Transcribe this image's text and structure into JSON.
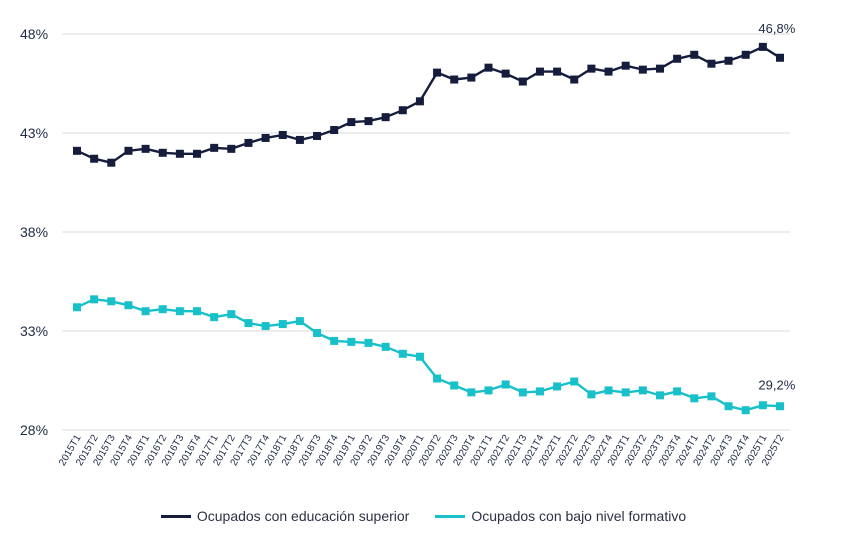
{
  "chart_data": {
    "type": "line",
    "title": "",
    "xlabel": "",
    "ylabel": "",
    "ylim": [
      28,
      48.5
    ],
    "yticks": [
      28,
      33,
      38,
      43,
      48
    ],
    "ytick_labels": [
      "28%",
      "33%",
      "38%",
      "43%",
      "48%"
    ],
    "grid": true,
    "legend_position": "bottom-center",
    "categories": [
      "2015T1",
      "2015T2",
      "2015T3",
      "2015T4",
      "2016T1",
      "2016T2",
      "2016T3",
      "2016T4",
      "2017T1",
      "2017T2",
      "2017T3",
      "2017T4",
      "2018T1",
      "2018T2",
      "2018T3",
      "2018T4",
      "2019T1",
      "2019T2",
      "2019T3",
      "2019T4",
      "2020T1",
      "2020T2",
      "2020T3",
      "2020T4",
      "2021T1",
      "2021T2",
      "2021T3",
      "2021T4",
      "2022T1",
      "2022T2",
      "2022T3",
      "2022T4",
      "2023T1",
      "2023T2",
      "2023T3",
      "2023T4",
      "2024T1",
      "2024T2",
      "2024T3",
      "2024T4",
      "2025T1",
      "2025T2"
    ],
    "series": [
      {
        "name": "Ocupados con educación superior",
        "color": "#151c3c",
        "values": [
          42.1,
          41.7,
          41.5,
          42.1,
          42.2,
          42.0,
          41.95,
          41.95,
          42.25,
          42.2,
          42.5,
          42.75,
          42.9,
          42.65,
          42.85,
          43.15,
          43.55,
          43.6,
          43.8,
          44.15,
          44.6,
          46.05,
          45.7,
          45.8,
          46.3,
          46.0,
          45.6,
          46.1,
          46.1,
          45.7,
          46.25,
          46.1,
          46.4,
          46.2,
          46.25,
          46.75,
          46.95,
          46.5,
          46.65,
          46.95,
          47.35,
          46.8
        ],
        "end_label": "46,8%"
      },
      {
        "name": "Ocupados con bajo nivel formativo",
        "color": "#18c0c9",
        "values": [
          34.2,
          34.6,
          34.5,
          34.3,
          34.0,
          34.1,
          34.0,
          34.0,
          33.7,
          33.85,
          33.4,
          33.25,
          33.35,
          33.5,
          32.9,
          32.5,
          32.45,
          32.4,
          32.2,
          31.85,
          31.7,
          30.6,
          30.25,
          29.9,
          30.0,
          30.3,
          29.9,
          29.95,
          30.2,
          30.45,
          29.8,
          30.0,
          29.9,
          30.0,
          29.75,
          29.95,
          29.6,
          29.7,
          29.2,
          29.0,
          29.25,
          29.2
        ],
        "end_label": "29,2%"
      }
    ]
  }
}
